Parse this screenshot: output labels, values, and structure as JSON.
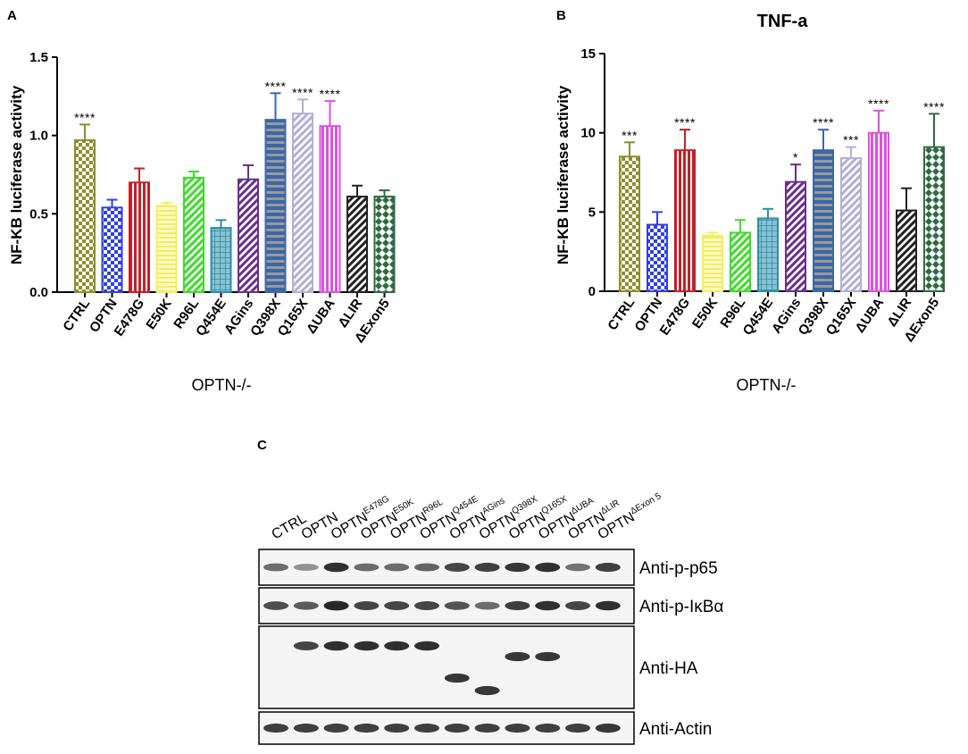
{
  "figure": {
    "panel_labels": [
      "A",
      "B",
      "C"
    ]
  },
  "chart_data": [
    {
      "panel": "A",
      "type": "bar",
      "title": "",
      "ylabel": "NF-KB luciferase activity",
      "xlabel": "OPTN-/-",
      "ylim": [
        0,
        1.5
      ],
      "yticks": [
        0.0,
        0.5,
        1.0,
        1.5
      ],
      "ytick_labels": [
        "0.0",
        "0.5",
        "1.0",
        "1.5"
      ],
      "grid": false,
      "categories": [
        "CTRL",
        "OPTN",
        "E478G",
        "E50K",
        "R96L",
        "Q454E",
        "AGins",
        "Q398X",
        "Q165X",
        "ΔUBA",
        "ΔLIR",
        "ΔExon5"
      ],
      "values": [
        0.97,
        0.54,
        0.7,
        0.55,
        0.73,
        0.41,
        0.72,
        1.1,
        1.14,
        1.06,
        0.61,
        0.61
      ],
      "errors": [
        0.1,
        0.05,
        0.09,
        0.02,
        0.04,
        0.05,
        0.09,
        0.17,
        0.09,
        0.16,
        0.07,
        0.04
      ],
      "significance": [
        "****",
        "",
        "",
        "",
        "",
        "",
        "",
        "****",
        "****",
        "****",
        "",
        ""
      ],
      "colors": [
        "#8c8f2c",
        "#2f3fe6",
        "#c42027",
        "#f2ee5f",
        "#3ddc2a",
        "#2a8ea8",
        "#6a2f8c",
        "#3b67a8",
        "#b1afd6",
        "#de50de",
        "#222222",
        "#2f6b42"
      ],
      "patterns": [
        "check",
        "check",
        "vlines",
        "hlines",
        "diag",
        "grid",
        "diag",
        "hbands",
        "diag",
        "vlines",
        "diag",
        "diamond"
      ]
    },
    {
      "panel": "B",
      "type": "bar",
      "title": "TNF-a",
      "ylabel": "NF-KB luciferase activity",
      "xlabel": "OPTN-/-",
      "ylim": [
        0,
        15
      ],
      "yticks": [
        0,
        5,
        10,
        15
      ],
      "ytick_labels": [
        "0",
        "5",
        "10",
        "15"
      ],
      "grid": false,
      "categories": [
        "CTRL",
        "OPTN",
        "E478G",
        "E50K",
        "R96L",
        "Q454E",
        "AGins",
        "Q398X",
        "Q165X",
        "ΔUBA",
        "ΔLIR",
        "ΔExon5"
      ],
      "values": [
        8.5,
        4.2,
        8.9,
        3.5,
        3.7,
        4.6,
        6.9,
        8.9,
        8.4,
        10.0,
        5.1,
        9.1
      ],
      "errors": [
        0.9,
        0.8,
        1.3,
        0.2,
        0.8,
        0.6,
        1.1,
        1.3,
        0.7,
        1.4,
        1.4,
        2.1
      ],
      "significance": [
        "***",
        "",
        "****",
        "",
        "",
        "",
        "*",
        "****",
        "***",
        "****",
        "",
        "****"
      ],
      "colors": [
        "#8c8f2c",
        "#2f3fe6",
        "#c42027",
        "#f2ee5f",
        "#3ddc2a",
        "#2a8ea8",
        "#6a2f8c",
        "#3b67a8",
        "#b1afd6",
        "#de50de",
        "#222222",
        "#2f6b42"
      ],
      "patterns": [
        "check",
        "check",
        "vlines",
        "hlines",
        "diag",
        "grid",
        "diag",
        "hbands",
        "diag",
        "vlines",
        "diag",
        "diamond"
      ]
    }
  ],
  "blot": {
    "lanes": [
      {
        "base": "CTRL",
        "sup": ""
      },
      {
        "base": "OPTN",
        "sup": ""
      },
      {
        "base": "OPTN",
        "sup": "E478G"
      },
      {
        "base": "OPTN",
        "sup": "E50K"
      },
      {
        "base": "OPTN",
        "sup": "R96L"
      },
      {
        "base": "OPTN",
        "sup": "Q454E"
      },
      {
        "base": "OPTN",
        "sup": "AGins"
      },
      {
        "base": "OPTN",
        "sup": "Q398X"
      },
      {
        "base": "OPTN",
        "sup": "Q165X"
      },
      {
        "base": "OPTN",
        "sup": "ΔUBA"
      },
      {
        "base": "OPTN",
        "sup": "ΔLIR"
      },
      {
        "base": "OPTN",
        "sup": "ΔExon 5"
      }
    ],
    "rows": [
      {
        "label": "Anti-p-p65",
        "intensity": [
          0.55,
          0.3,
          0.95,
          0.55,
          0.55,
          0.6,
          0.8,
          0.85,
          0.9,
          0.95,
          0.5,
          0.85
        ]
      },
      {
        "label": "Anti-p-IκBα",
        "intensity": [
          0.75,
          0.65,
          1.0,
          0.8,
          0.8,
          0.8,
          0.7,
          0.55,
          0.85,
          0.95,
          0.8,
          0.95
        ]
      },
      {
        "label": "Anti-HA",
        "intensity": [
          0,
          0.8,
          0.95,
          0.95,
          0.95,
          0.95,
          0.9,
          0.9,
          0.9,
          0.9,
          0,
          0
        ]
      },
      {
        "label": "Anti-Actin",
        "intensity": [
          0.85,
          0.85,
          0.85,
          0.85,
          0.85,
          0.85,
          0.85,
          0.85,
          0.85,
          0.85,
          0.85,
          0.9
        ]
      }
    ]
  }
}
